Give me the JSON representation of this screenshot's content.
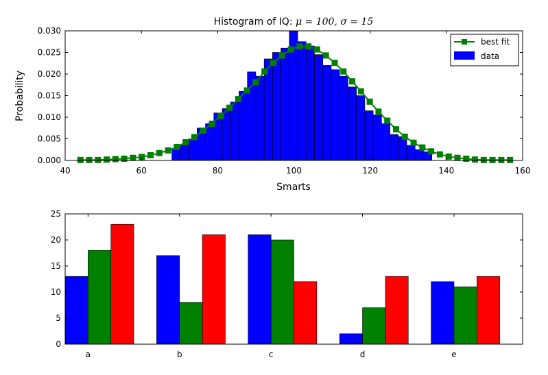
{
  "chart_data": [
    {
      "type": "bar",
      "subtype": "histogram-with-line",
      "title": {
        "prefix": "Histogram of IQ: ",
        "math": "μ = 100, σ = 15"
      },
      "xlabel": "Smarts",
      "ylabel": "Probability",
      "xlim": [
        40,
        160
      ],
      "ylim": [
        0,
        0.03
      ],
      "xticks": [
        "40",
        "60",
        "80",
        "100",
        "120",
        "140",
        "160"
      ],
      "yticks": [
        "0.000",
        "0.005",
        "0.010",
        "0.015",
        "0.020",
        "0.025",
        "0.030"
      ],
      "grid": false,
      "legend": {
        "position": "top-right",
        "entries": [
          "best fit",
          "data"
        ]
      },
      "series": [
        {
          "name": "data",
          "kind": "histogram",
          "color": "#0000ff",
          "bin_width": 2.2,
          "bins": [
            {
              "x0": 68.0,
              "value": 0.0025
            },
            {
              "x0": 70.2,
              "value": 0.0036
            },
            {
              "x0": 72.4,
              "value": 0.005
            },
            {
              "x0": 74.6,
              "value": 0.0075
            },
            {
              "x0": 76.8,
              "value": 0.0085
            },
            {
              "x0": 79.0,
              "value": 0.011
            },
            {
              "x0": 81.2,
              "value": 0.012
            },
            {
              "x0": 83.4,
              "value": 0.0135
            },
            {
              "x0": 85.6,
              "value": 0.016
            },
            {
              "x0": 87.8,
              "value": 0.0205
            },
            {
              "x0": 90.0,
              "value": 0.0195
            },
            {
              "x0": 92.2,
              "value": 0.0235
            },
            {
              "x0": 94.4,
              "value": 0.025
            },
            {
              "x0": 96.6,
              "value": 0.026
            },
            {
              "x0": 98.8,
              "value": 0.03
            },
            {
              "x0": 101.0,
              "value": 0.0275
            },
            {
              "x0": 103.2,
              "value": 0.0265
            },
            {
              "x0": 105.4,
              "value": 0.0245
            },
            {
              "x0": 107.6,
              "value": 0.022
            },
            {
              "x0": 109.8,
              "value": 0.021
            },
            {
              "x0": 112.0,
              "value": 0.0195
            },
            {
              "x0": 114.2,
              "value": 0.017
            },
            {
              "x0": 116.4,
              "value": 0.015
            },
            {
              "x0": 118.6,
              "value": 0.0115
            },
            {
              "x0": 120.8,
              "value": 0.0105
            },
            {
              "x0": 123.0,
              "value": 0.0085
            },
            {
              "x0": 125.2,
              "value": 0.006
            },
            {
              "x0": 127.4,
              "value": 0.0055
            },
            {
              "x0": 129.6,
              "value": 0.0035
            },
            {
              "x0": 131.8,
              "value": 0.0025
            },
            {
              "x0": 134.0,
              "value": 0.002
            }
          ]
        },
        {
          "name": "best fit",
          "kind": "line",
          "color": "#008000",
          "marker": "square",
          "x": [
            44,
            46.3,
            48.6,
            50.9,
            53.2,
            55.5,
            57.8,
            60.1,
            62.4,
            64.7,
            67,
            69.3,
            71.6,
            73.9,
            76.2,
            78.5,
            80.8,
            83.1,
            85.4,
            87.7,
            90,
            92.3,
            94.6,
            96.9,
            99.2,
            101.5,
            103.8,
            106.1,
            108.4,
            110.7,
            113,
            115.3,
            117.6,
            119.9,
            122.2,
            124.5,
            126.8,
            129.1,
            131.4,
            133.7,
            136,
            138.3,
            140.6,
            142.9,
            145.2,
            147.5,
            149.8,
            152.1,
            154.4,
            156.7
          ],
          "values": [
            0.0001,
            0.0001,
            0.0001,
            0.0002,
            0.0003,
            0.0004,
            0.0006,
            0.0008,
            0.0012,
            0.0017,
            0.0023,
            0.0031,
            0.0042,
            0.0054,
            0.0069,
            0.0085,
            0.0103,
            0.0122,
            0.0142,
            0.0162,
            0.0181,
            0.0206,
            0.0226,
            0.0243,
            0.0257,
            0.0264,
            0.0264,
            0.0257,
            0.0243,
            0.0226,
            0.0206,
            0.0183,
            0.016,
            0.0136,
            0.0113,
            0.0092,
            0.0072,
            0.0055,
            0.0041,
            0.003,
            0.0021,
            0.0014,
            0.0009,
            0.0006,
            0.0004,
            0.0002,
            0.0001,
            0.0001,
            0.0001,
            0.0001
          ]
        }
      ]
    },
    {
      "type": "bar",
      "subtype": "grouped",
      "title": "",
      "xlabel": "",
      "ylabel": "",
      "ylim": [
        0,
        25
      ],
      "yticks": [
        "0",
        "5",
        "10",
        "15",
        "20",
        "25"
      ],
      "grid": false,
      "categories": [
        "a",
        "b",
        "c",
        "d",
        "e"
      ],
      "series": [
        {
          "color": "#0000ff",
          "values": [
            13,
            17,
            21,
            2,
            12
          ]
        },
        {
          "color": "#008000",
          "values": [
            18,
            8,
            20,
            7,
            11
          ]
        },
        {
          "color": "#ff0000",
          "values": [
            23,
            21,
            12,
            13,
            13
          ]
        }
      ]
    }
  ]
}
